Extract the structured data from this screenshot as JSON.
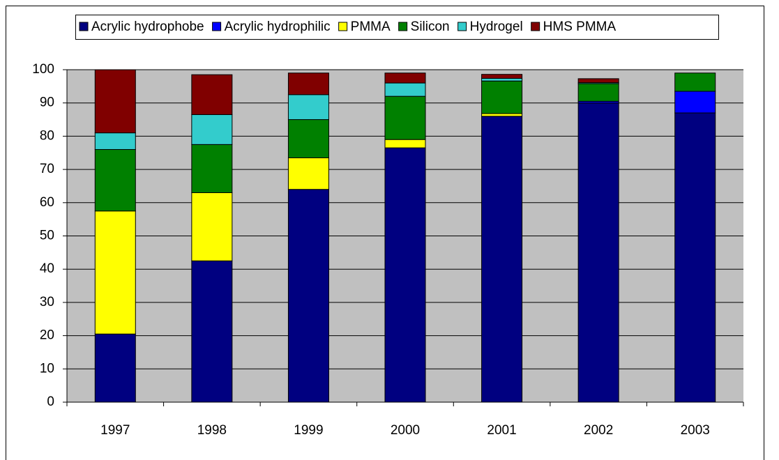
{
  "chart_data": {
    "type": "stacked_bar",
    "categories": [
      "1997",
      "1998",
      "1999",
      "2000",
      "2001",
      "2002",
      "2003"
    ],
    "series": [
      {
        "name": "Acrylic hydrophobe",
        "color": "#000080",
        "values": [
          20.5,
          42.5,
          64,
          76.5,
          86,
          90,
          87
        ]
      },
      {
        "name": "Acrylic hydrophilic",
        "color": "#0000ff",
        "values": [
          0,
          0,
          0,
          0,
          0,
          0.5,
          6.5
        ]
      },
      {
        "name": "PMMA",
        "color": "#ffff00",
        "values": [
          37,
          20.5,
          9.5,
          2.5,
          0.8,
          0,
          0
        ]
      },
      {
        "name": "Silicon",
        "color": "#008000",
        "values": [
          18.5,
          14.5,
          11.5,
          13,
          9.8,
          5.3,
          5.5
        ]
      },
      {
        "name": "Hydrogel",
        "color": "#33cccc",
        "values": [
          5,
          9,
          7.5,
          4,
          0.8,
          0.3,
          0
        ]
      },
      {
        "name": "HMS PMMA",
        "color": "#800000",
        "values": [
          19,
          12,
          6.5,
          3,
          1.2,
          1.2,
          0
        ]
      }
    ],
    "ylim": [
      0,
      100
    ],
    "yticks": [
      0,
      10,
      20,
      30,
      40,
      50,
      60,
      70,
      80,
      90,
      100
    ],
    "grid": true,
    "legend": "top",
    "plot_background": "#c0c0c0"
  }
}
